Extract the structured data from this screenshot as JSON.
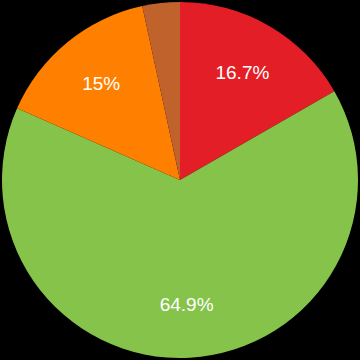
{
  "chart_data": {
    "type": "pie",
    "values": [
      16.7,
      64.9,
      15,
      3.4
    ],
    "value_labels": [
      "16.7%",
      "64.9%",
      "15%",
      null
    ],
    "colors": [
      "#e41e26",
      "#86c34a",
      "#ff7f00",
      "#c0622c"
    ],
    "data_labels": true
  }
}
